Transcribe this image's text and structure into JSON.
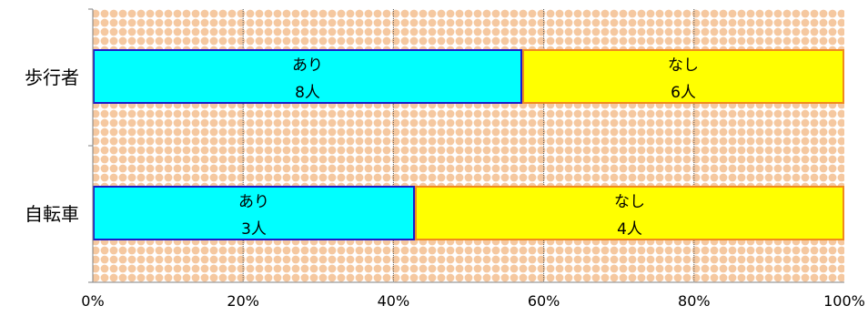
{
  "chart_data": {
    "type": "bar",
    "orientation": "horizontal",
    "stacked": "percent",
    "categories": [
      "歩行者",
      "自転車"
    ],
    "series": [
      {
        "name": "あり",
        "values": [
          8,
          3
        ],
        "count_labels": [
          "8人",
          "3人"
        ],
        "color": "#00FFFF",
        "border": "#1C1CC8"
      },
      {
        "name": "なし",
        "values": [
          6,
          4
        ],
        "count_labels": [
          "6人",
          "4人"
        ],
        "color": "#FFFF00",
        "border": "#F08A1E"
      }
    ],
    "x_ticks": [
      "0%",
      "20%",
      "40%",
      "60%",
      "80%",
      "100%"
    ],
    "xlim": [
      0,
      100
    ],
    "grid": "vertical",
    "background": {
      "pattern": "diamond",
      "color": "#F5C8A0"
    }
  }
}
